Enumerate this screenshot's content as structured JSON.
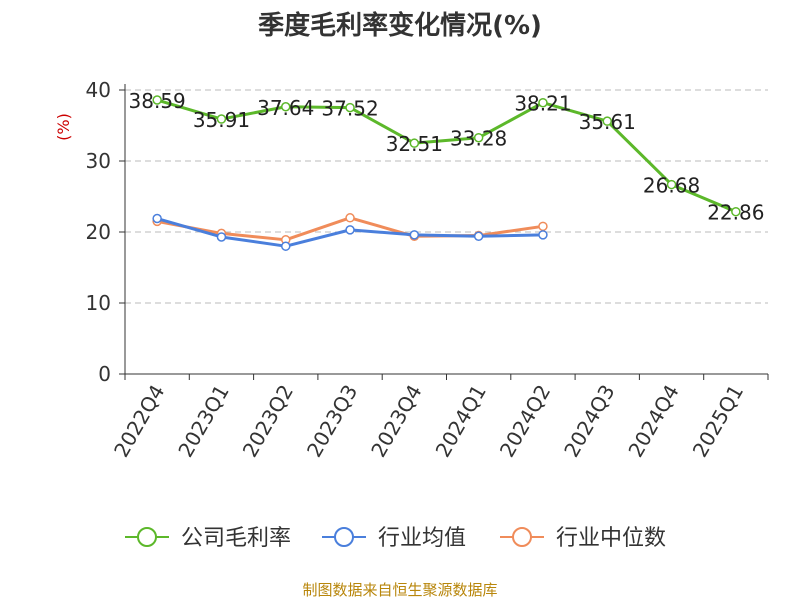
{
  "chart_data": {
    "type": "line",
    "title": "季度毛利率变化情况(%)",
    "ylabel": "(%)",
    "xlabel": "",
    "ylim": [
      0,
      40
    ],
    "yticks": [
      0,
      10,
      20,
      30,
      40
    ],
    "grid": "horizontal dashed",
    "legend_position": "bottom",
    "categories": [
      "2022Q4",
      "2023Q1",
      "2023Q2",
      "2023Q3",
      "2023Q4",
      "2024Q1",
      "2024Q2",
      "2024Q3",
      "2024Q4",
      "2025Q1"
    ],
    "series": [
      {
        "name": "公司毛利率",
        "color": "#5cb82a",
        "values": [
          38.59,
          35.91,
          37.64,
          37.52,
          32.51,
          33.28,
          38.21,
          35.61,
          26.68,
          22.86
        ],
        "labels": [
          "38.59",
          "35.91",
          "37.64",
          "37.52",
          "32.51",
          "33.28",
          "38.21",
          "35.61",
          "26.68",
          "22.86"
        ]
      },
      {
        "name": "行业均值",
        "color": "#4a7fdc",
        "values": [
          21.9,
          19.3,
          18.0,
          20.3,
          19.6,
          19.4,
          19.6,
          null,
          null,
          null
        ]
      },
      {
        "name": "行业中位数",
        "color": "#f08c5a",
        "values": [
          21.5,
          19.8,
          18.9,
          22.0,
          19.4,
          19.5,
          20.8,
          null,
          null,
          null
        ]
      }
    ]
  },
  "footer": {
    "source": "制图数据来自恒生聚源数据库"
  }
}
